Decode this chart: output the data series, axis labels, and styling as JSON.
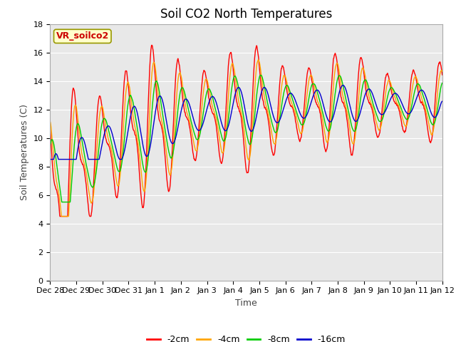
{
  "title": "Soil CO2 North Temperatures",
  "xlabel": "Time",
  "ylabel": "Soil Temperatures (C)",
  "annotation": "VR_soilco2",
  "ylim": [
    0,
    18
  ],
  "yticks": [
    0,
    2,
    4,
    6,
    8,
    10,
    12,
    14,
    16,
    18
  ],
  "plot_bg_color": "#e8e8e8",
  "series_colors": [
    "#ff0000",
    "#ffa500",
    "#00cc00",
    "#0000cc"
  ],
  "series_labels": [
    "-2cm",
    "-4cm",
    "-8cm",
    "-16cm"
  ],
  "x_tick_labels": [
    "Dec 28",
    "Dec 29",
    "Dec 30",
    "Dec 31",
    "Jan 1",
    "Jan 2",
    "Jan 3",
    "Jan 4",
    "Jan 5",
    "Jan 6",
    "Jan 7",
    "Jan 8",
    "Jan 9",
    "Jan 10",
    "Jan 11",
    "Jan 12"
  ],
  "title_fontsize": 12,
  "label_fontsize": 9,
  "tick_fontsize": 8,
  "legend_fontsize": 9,
  "annotation_fontsize": 9
}
